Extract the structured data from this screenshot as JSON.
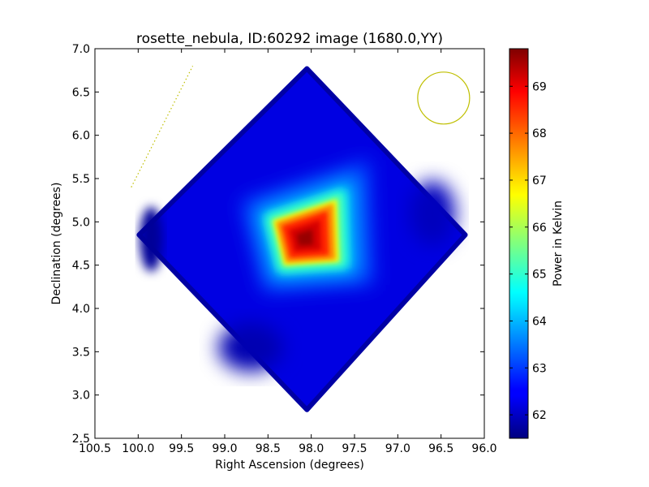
{
  "chart_data": {
    "type": "heatmap",
    "title": "rosette_nebula, ID:60292 image (1680.0,YY)",
    "xlabel": "Right Ascension (degrees)",
    "ylabel": "Declination (degrees)",
    "xlim": [
      100.5,
      96.0
    ],
    "ylim": [
      2.5,
      7.0
    ],
    "x_ticks": [
      "100.5",
      "100.0",
      "99.5",
      "99.0",
      "98.5",
      "98.0",
      "97.5",
      "97.0",
      "96.5",
      "96.0"
    ],
    "y_ticks": [
      "2.5",
      "3.0",
      "3.5",
      "4.0",
      "4.5",
      "5.0",
      "5.5",
      "6.0",
      "6.5",
      "7.0"
    ],
    "colorbar": {
      "label": "Power in Kelvin",
      "colormap": "jet",
      "range": [
        61.5,
        69.8
      ],
      "ticks": [
        "62",
        "63",
        "64",
        "65",
        "66",
        "67",
        "68",
        "69"
      ]
    },
    "map": {
      "footprint_corners": [
        [
          98.05,
          6.77
        ],
        [
          96.22,
          4.85
        ],
        [
          98.05,
          2.83
        ],
        [
          99.99,
          4.85
        ]
      ],
      "background_level": 62.3,
      "edge_level": 61.8,
      "peak": {
        "ra": 98.08,
        "dec": 4.8,
        "value": 69.8
      },
      "bright_region_corners": [
        [
          97.65,
          5.33
        ],
        [
          97.62,
          4.5
        ],
        [
          98.35,
          4.45
        ],
        [
          98.5,
          5.05
        ]
      ]
    },
    "annotations": {
      "beam_circle": {
        "ra": 96.47,
        "dec": 6.43,
        "radius_deg": 0.3,
        "color": "#bfbf00"
      },
      "dotted_line": {
        "from": [
          100.08,
          5.4
        ],
        "to": [
          99.37,
          6.8
        ],
        "color": "#bfbf00"
      }
    },
    "grid": false
  }
}
